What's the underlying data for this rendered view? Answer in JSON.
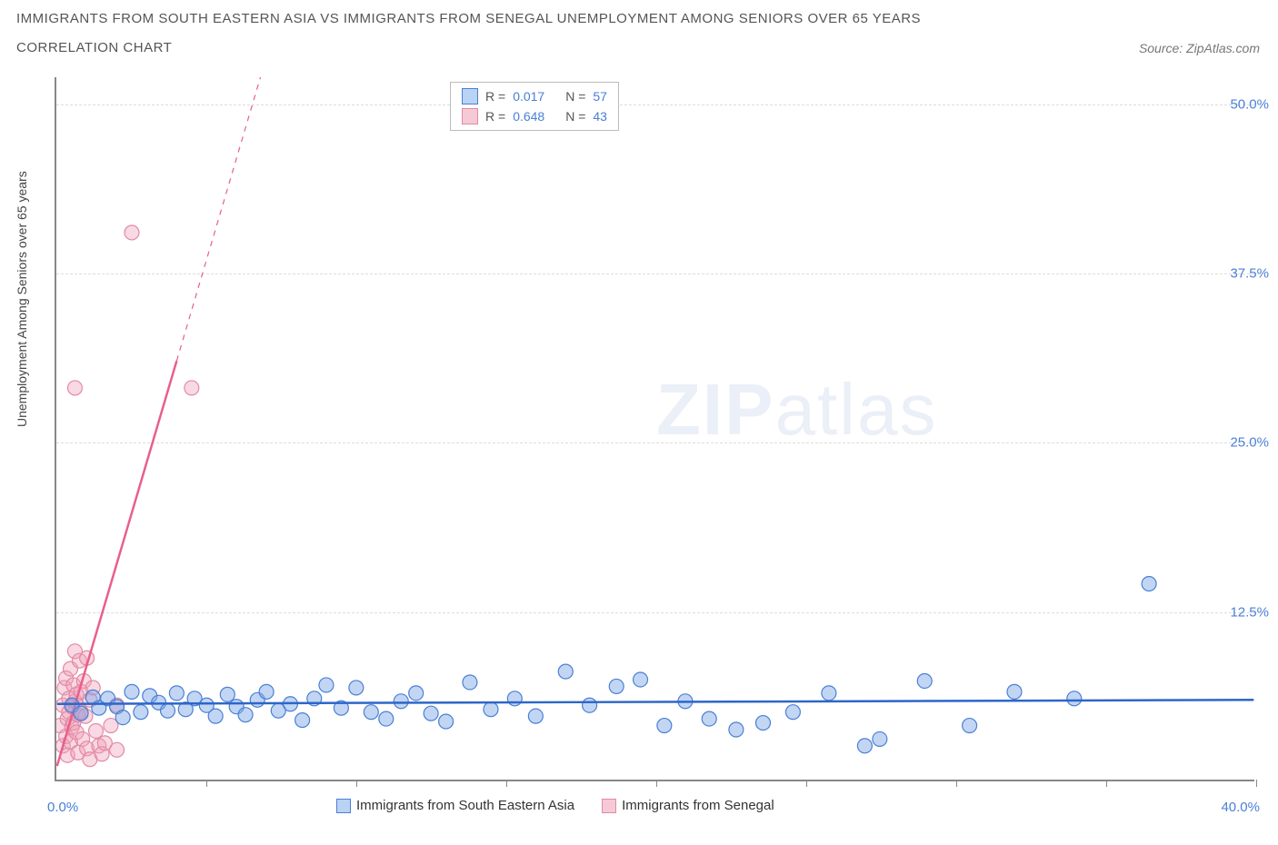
{
  "title_line1": "IMMIGRANTS FROM SOUTH EASTERN ASIA VS IMMIGRANTS FROM SENEGAL UNEMPLOYMENT AMONG SENIORS OVER 65 YEARS",
  "title_line2": "CORRELATION CHART",
  "source_label": "Source: ZipAtlas.com",
  "watermark_heavy": "ZIP",
  "watermark_light": "atlas",
  "y_axis_label": "Unemployment Among Seniors over 65 years",
  "y_ticks": [
    {
      "value": 12.5,
      "label": "12.5%"
    },
    {
      "value": 25.0,
      "label": "25.0%"
    },
    {
      "value": 37.5,
      "label": "37.5%"
    },
    {
      "value": 50.0,
      "label": "50.0%"
    }
  ],
  "x_origin_label": "0.0%",
  "x_max_label": "40.0%",
  "x_tick_positions": [
    5,
    10,
    15,
    20,
    25,
    30,
    35,
    40
  ],
  "legend_top": {
    "r_label": "R =",
    "n_label": "N =",
    "rows": [
      {
        "swatch_fill": "#b9d3f4",
        "swatch_border": "#4a7fd6",
        "r": "0.017",
        "n": "57"
      },
      {
        "swatch_fill": "#f6c9d6",
        "swatch_border": "#e28aa5",
        "r": "0.648",
        "n": "43"
      }
    ]
  },
  "legend_bottom": [
    {
      "swatch_fill": "#b9d3f4",
      "swatch_border": "#4a7fd6",
      "label": "Immigrants from South Eastern Asia"
    },
    {
      "swatch_fill": "#f6c9d6",
      "swatch_border": "#e28aa5",
      "label": "Immigrants from Senegal"
    }
  ],
  "chart": {
    "inner_width": 1320,
    "inner_height": 775,
    "x_domain": [
      0,
      40
    ],
    "y_domain": [
      0,
      52
    ],
    "background_color": "#ffffff",
    "grid_color": "#dddddd",
    "series": [
      {
        "name": "blue",
        "point_fill": "rgba(120,165,230,0.45)",
        "point_stroke": "#4a7fd6",
        "point_radius": 8,
        "trend_color": "#2d66c9",
        "trend_width": 2.5,
        "trend": {
          "x1": 0,
          "y1": 5.6,
          "x2": 40,
          "y2": 5.9
        },
        "points": [
          [
            0.5,
            5.5
          ],
          [
            0.8,
            4.9
          ],
          [
            1.2,
            6.1
          ],
          [
            1.4,
            5.3
          ],
          [
            1.7,
            6.0
          ],
          [
            2.0,
            5.4
          ],
          [
            2.2,
            4.6
          ],
          [
            2.5,
            6.5
          ],
          [
            2.8,
            5.0
          ],
          [
            3.1,
            6.2
          ],
          [
            3.4,
            5.7
          ],
          [
            3.7,
            5.1
          ],
          [
            4.0,
            6.4
          ],
          [
            4.3,
            5.2
          ],
          [
            4.6,
            6.0
          ],
          [
            5.0,
            5.5
          ],
          [
            5.3,
            4.7
          ],
          [
            5.7,
            6.3
          ],
          [
            6.0,
            5.4
          ],
          [
            6.3,
            4.8
          ],
          [
            6.7,
            5.9
          ],
          [
            7.0,
            6.5
          ],
          [
            7.4,
            5.1
          ],
          [
            7.8,
            5.6
          ],
          [
            8.2,
            4.4
          ],
          [
            8.6,
            6.0
          ],
          [
            9.0,
            7.0
          ],
          [
            9.5,
            5.3
          ],
          [
            10.0,
            6.8
          ],
          [
            10.5,
            5.0
          ],
          [
            11.0,
            4.5
          ],
          [
            11.5,
            5.8
          ],
          [
            12.0,
            6.4
          ],
          [
            12.5,
            4.9
          ],
          [
            13.0,
            4.3
          ],
          [
            13.8,
            7.2
          ],
          [
            14.5,
            5.2
          ],
          [
            15.3,
            6.0
          ],
          [
            16.0,
            4.7
          ],
          [
            17.0,
            8.0
          ],
          [
            17.8,
            5.5
          ],
          [
            18.7,
            6.9
          ],
          [
            19.5,
            7.4
          ],
          [
            20.3,
            4.0
          ],
          [
            21.0,
            5.8
          ],
          [
            21.8,
            4.5
          ],
          [
            22.7,
            3.7
          ],
          [
            23.6,
            4.2
          ],
          [
            24.6,
            5.0
          ],
          [
            25.8,
            6.4
          ],
          [
            27.0,
            2.5
          ],
          [
            27.5,
            3.0
          ],
          [
            29.0,
            7.3
          ],
          [
            30.5,
            4.0
          ],
          [
            32.0,
            6.5
          ],
          [
            34.0,
            6.0
          ],
          [
            36.5,
            14.5
          ]
        ]
      },
      {
        "name": "pink",
        "point_fill": "rgba(240,160,185,0.4)",
        "point_stroke": "#e28aa5",
        "point_radius": 8,
        "trend_color": "#e85f8a",
        "trend_width": 2.5,
        "trend_solid": {
          "x1": 0,
          "y1": 1.0,
          "x2": 4.0,
          "y2": 31.0
        },
        "trend_dashed": {
          "x1": 4.0,
          "y1": 31.0,
          "x2": 6.8,
          "y2": 52.0
        },
        "points": [
          [
            0.1,
            4.0
          ],
          [
            0.2,
            5.5
          ],
          [
            0.2,
            2.5
          ],
          [
            0.25,
            6.8
          ],
          [
            0.3,
            3.2
          ],
          [
            0.3,
            7.5
          ],
          [
            0.35,
            4.5
          ],
          [
            0.35,
            1.8
          ],
          [
            0.4,
            6.0
          ],
          [
            0.4,
            5.0
          ],
          [
            0.45,
            8.2
          ],
          [
            0.45,
            2.8
          ],
          [
            0.5,
            5.4
          ],
          [
            0.5,
            3.9
          ],
          [
            0.55,
            7.0
          ],
          [
            0.55,
            4.2
          ],
          [
            0.6,
            5.8
          ],
          [
            0.6,
            9.5
          ],
          [
            0.65,
            3.5
          ],
          [
            0.65,
            6.3
          ],
          [
            0.7,
            4.8
          ],
          [
            0.7,
            2.0
          ],
          [
            0.75,
            8.8
          ],
          [
            0.8,
            5.0
          ],
          [
            0.8,
            6.5
          ],
          [
            0.85,
            3.0
          ],
          [
            0.9,
            7.3
          ],
          [
            0.95,
            4.7
          ],
          [
            1.0,
            9.0
          ],
          [
            1.0,
            2.3
          ],
          [
            1.1,
            5.9
          ],
          [
            1.1,
            1.5
          ],
          [
            1.2,
            6.8
          ],
          [
            1.3,
            3.6
          ],
          [
            1.4,
            2.5
          ],
          [
            1.5,
            1.9
          ],
          [
            1.6,
            2.7
          ],
          [
            1.8,
            4.0
          ],
          [
            2.0,
            2.2
          ],
          [
            0.6,
            29.0
          ],
          [
            2.5,
            40.5
          ],
          [
            4.5,
            29.0
          ],
          [
            2.0,
            5.5
          ]
        ]
      }
    ]
  }
}
